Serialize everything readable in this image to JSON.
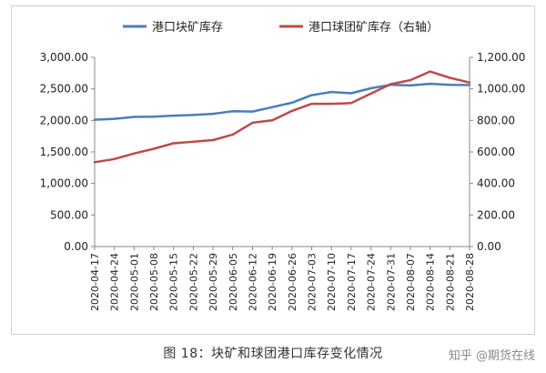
{
  "chart_data": {
    "type": "line",
    "title": "",
    "xlabel": "",
    "ylabel": "",
    "categories": [
      "2020-04-17",
      "2020-04-24",
      "2020-05-01",
      "2020-05-08",
      "2020-05-15",
      "2020-05-22",
      "2020-05-29",
      "2020-06-05",
      "2020-06-12",
      "2020-06-19",
      "2020-06-26",
      "2020-07-03",
      "2020-07-10",
      "2020-07-17",
      "2020-07-24",
      "2020-07-31",
      "2020-08-07",
      "2020-08-14",
      "2020-08-21",
      "2020-08-28"
    ],
    "series": [
      {
        "name": "港口块矿库存",
        "axis": "left",
        "color": "#4a7ebb",
        "values": [
          2010,
          2025,
          2055,
          2060,
          2075,
          2085,
          2105,
          2145,
          2140,
          2210,
          2280,
          2400,
          2450,
          2430,
          2510,
          2565,
          2555,
          2580,
          2565,
          2560
        ]
      },
      {
        "name": "港口球团矿库存（右轴）",
        "axis": "right",
        "color": "#be4b48",
        "values": [
          535,
          555,
          590,
          620,
          655,
          665,
          675,
          710,
          785,
          800,
          860,
          905,
          905,
          910,
          970,
          1030,
          1055,
          1110,
          1070,
          1040
        ]
      }
    ],
    "y_left": {
      "min": 0,
      "max": 3000,
      "ticks": [
        "3,000.00",
        "2,500.00",
        "2,000.00",
        "1,500.00",
        "1,000.00",
        "500.00",
        "0.00"
      ]
    },
    "y_right": {
      "min": 0,
      "max": 1200,
      "ticks": [
        "1,200.00",
        "1,000.00",
        "800.00",
        "600.00",
        "400.00",
        "200.00",
        "0.00"
      ]
    },
    "grid": false,
    "legend_position": "top"
  },
  "caption": "图 18：块矿和球团港口库存变化情况",
  "watermark": "知乎 @期货在线"
}
